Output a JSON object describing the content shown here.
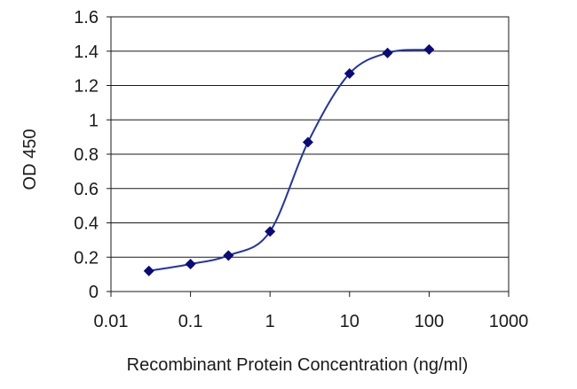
{
  "chart_data": {
    "type": "scatter",
    "title": "",
    "xlabel": "Recombinant Protein Concentration (ng/ml)",
    "ylabel": "OD 450",
    "xscale": "log",
    "xlim": [
      0.01,
      1000
    ],
    "ylim": [
      0,
      1.6
    ],
    "xticks": [
      "0.01",
      "0.1",
      "1",
      "10",
      "100",
      "1000"
    ],
    "yticks": [
      "0",
      "0.2",
      "0.4",
      "0.6",
      "0.8",
      "1",
      "1.2",
      "1.4",
      "1.6"
    ],
    "grid": "horizontal",
    "legend": "none",
    "fit": "sigmoidal curve",
    "series": [
      {
        "x": [
          0.03,
          0.1,
          0.3,
          1,
          3,
          10,
          30,
          100
        ],
        "y": [
          0.12,
          0.16,
          0.21,
          0.35,
          0.87,
          1.27,
          1.39,
          1.41
        ]
      }
    ],
    "colors": {
      "marker": "#0a0a7a",
      "curve": "#2233aa",
      "grid": "#1a1a1a",
      "text": "#1a1a1a"
    }
  }
}
